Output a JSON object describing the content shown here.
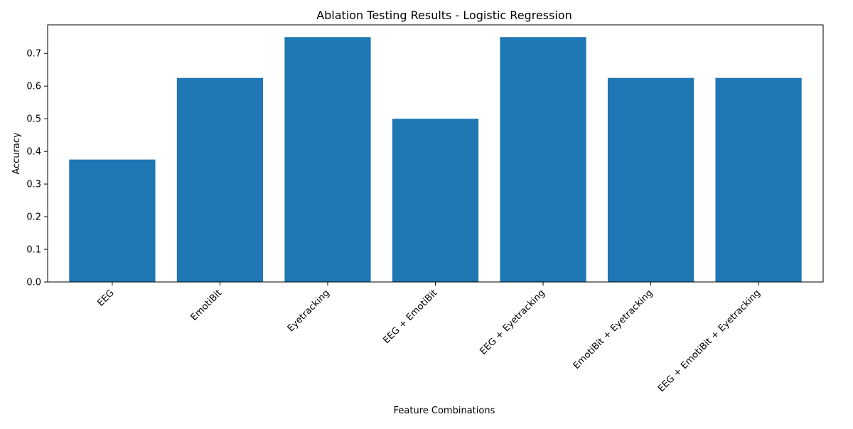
{
  "chart_data": {
    "type": "bar",
    "title": "Ablation Testing Results - Logistic Regression",
    "xlabel": "Feature Combinations",
    "ylabel": "Accuracy",
    "categories": [
      "EEG",
      "EmotiBit",
      "Eyetracking",
      "EEG + EmotiBit",
      "EEG + Eyetracking",
      "EmotiBit + Eyetracking",
      "EEG + EmotiBit + Eyetracking"
    ],
    "values": [
      0.375,
      0.625,
      0.75,
      0.5,
      0.75,
      0.625,
      0.625
    ],
    "ylim": [
      0,
      0.7875
    ],
    "yticks": [
      "0.0",
      "0.1",
      "0.2",
      "0.3",
      "0.4",
      "0.5",
      "0.6",
      "0.7"
    ],
    "grid": false,
    "bar_color": "#1f77b4"
  }
}
